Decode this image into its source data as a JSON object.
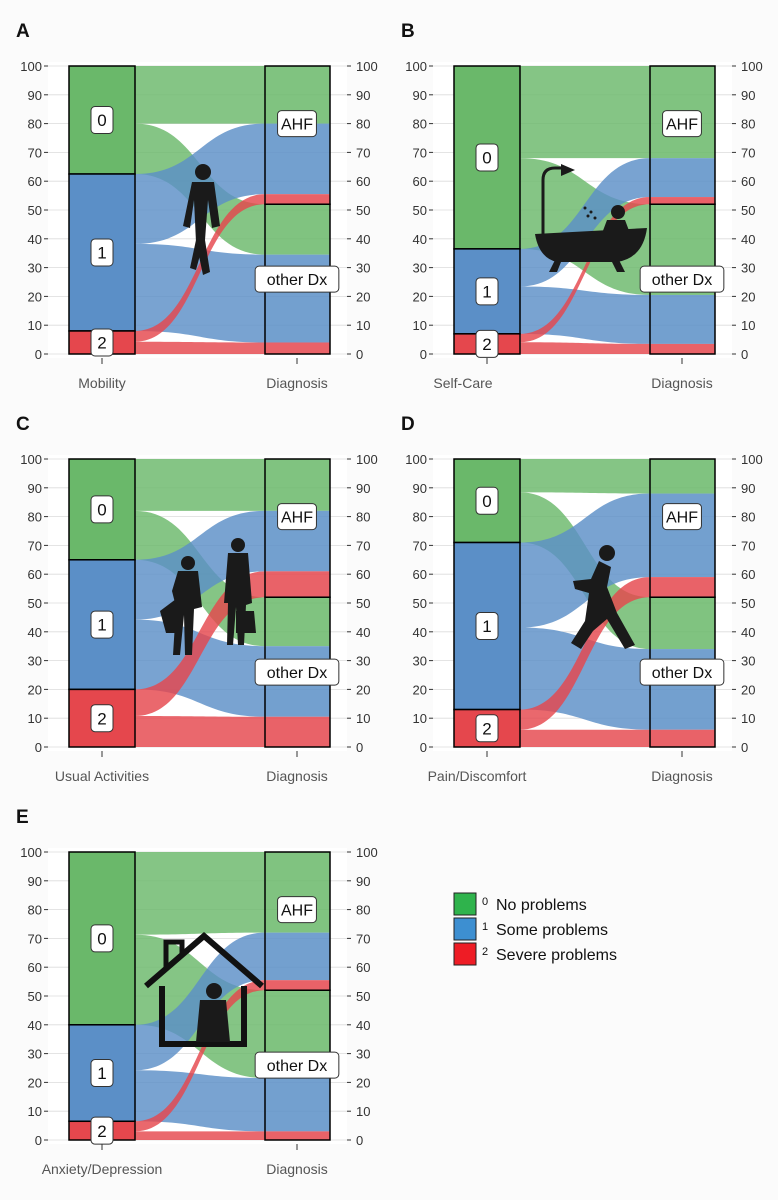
{
  "colors": {
    "level0": "#6ab86a",
    "level1": "#5b8fc7",
    "level2": "#e5474d",
    "grid": "#dcdcdc",
    "axis_text": "#555555"
  },
  "y_axis": {
    "min": 0,
    "max": 100,
    "ticks": [
      0,
      10,
      20,
      30,
      40,
      50,
      60,
      70,
      80,
      90,
      100
    ]
  },
  "legend": {
    "items": [
      {
        "level": "0",
        "label": "No problems",
        "color": "#2fb34c"
      },
      {
        "level": "1",
        "label": "Some problems",
        "color": "#3d8fd1"
      },
      {
        "level": "2",
        "label": "Severe problems",
        "color": "#ee1c25"
      }
    ]
  },
  "chart_data": [
    {
      "type": "alluvial",
      "panel": "A",
      "left_axis": "Mobility",
      "right_axis": "Diagnosis",
      "left_levels": [
        {
          "label": "0",
          "from": 62.5,
          "to": 100
        },
        {
          "label": "1",
          "from": 8,
          "to": 62.5
        },
        {
          "label": "2",
          "from": 0,
          "to": 8
        }
      ],
      "diagnosis_split": 52,
      "right_stack": [
        {
          "level": "0",
          "dx": "AHF",
          "from": 80,
          "to": 100
        },
        {
          "level": "1",
          "dx": "AHF",
          "from": 55.5,
          "to": 80
        },
        {
          "level": "2",
          "dx": "AHF",
          "from": 52,
          "to": 55.5
        },
        {
          "level": "0",
          "dx": "other Dx",
          "from": 34.5,
          "to": 52
        },
        {
          "level": "1",
          "dx": "other Dx",
          "from": 4,
          "to": 34.5
        },
        {
          "level": "2",
          "dx": "other Dx",
          "from": 0,
          "to": 4
        }
      ],
      "diagnosis_labels": [
        "AHF",
        "other Dx"
      ],
      "icon": "walking-person-icon"
    },
    {
      "type": "alluvial",
      "panel": "B",
      "left_axis": "Self-Care",
      "right_axis": "Diagnosis",
      "left_levels": [
        {
          "label": "0",
          "from": 36.5,
          "to": 100
        },
        {
          "label": "1",
          "from": 7,
          "to": 36.5
        },
        {
          "label": "2",
          "from": 0,
          "to": 7
        }
      ],
      "diagnosis_split": 52,
      "right_stack": [
        {
          "level": "0",
          "dx": "AHF",
          "from": 68,
          "to": 100
        },
        {
          "level": "1",
          "dx": "AHF",
          "from": 54.5,
          "to": 68
        },
        {
          "level": "2",
          "dx": "AHF",
          "from": 52,
          "to": 54.5
        },
        {
          "level": "0",
          "dx": "other Dx",
          "from": 20.5,
          "to": 52
        },
        {
          "level": "1",
          "dx": "other Dx",
          "from": 3.5,
          "to": 20.5
        },
        {
          "level": "2",
          "dx": "other Dx",
          "from": 0,
          "to": 3.5
        }
      ],
      "diagnosis_labels": [
        "AHF",
        "other Dx"
      ],
      "icon": "bathtub-icon"
    },
    {
      "type": "alluvial",
      "panel": "C",
      "left_axis": "Usual Activities",
      "right_axis": "Diagnosis",
      "left_levels": [
        {
          "label": "0",
          "from": 65,
          "to": 100
        },
        {
          "label": "1",
          "from": 20,
          "to": 65
        },
        {
          "label": "2",
          "from": 0,
          "to": 20
        }
      ],
      "diagnosis_split": 52,
      "right_stack": [
        {
          "level": "0",
          "dx": "AHF",
          "from": 82,
          "to": 100
        },
        {
          "level": "1",
          "dx": "AHF",
          "from": 61,
          "to": 82
        },
        {
          "level": "2",
          "dx": "AHF",
          "from": 52,
          "to": 61
        },
        {
          "level": "0",
          "dx": "other Dx",
          "from": 35,
          "to": 52
        },
        {
          "level": "1",
          "dx": "other Dx",
          "from": 10.5,
          "to": 35
        },
        {
          "level": "2",
          "dx": "other Dx",
          "from": 0,
          "to": 10.5
        }
      ],
      "diagnosis_labels": [
        "AHF",
        "other Dx"
      ],
      "icon": "people-carrying-bags-icon"
    },
    {
      "type": "alluvial",
      "panel": "D",
      "left_axis": "Pain/Discomfort",
      "right_axis": "Diagnosis",
      "left_levels": [
        {
          "label": "0",
          "from": 71,
          "to": 100
        },
        {
          "label": "1",
          "from": 13,
          "to": 71
        },
        {
          "label": "2",
          "from": 0,
          "to": 13
        }
      ],
      "diagnosis_split": 52,
      "right_stack": [
        {
          "level": "0",
          "dx": "AHF",
          "from": 88,
          "to": 100
        },
        {
          "level": "1",
          "dx": "AHF",
          "from": 59,
          "to": 88
        },
        {
          "level": "2",
          "dx": "AHF",
          "from": 52,
          "to": 59
        },
        {
          "level": "0",
          "dx": "other Dx",
          "from": 34,
          "to": 52
        },
        {
          "level": "1",
          "dx": "other Dx",
          "from": 6,
          "to": 34
        },
        {
          "level": "2",
          "dx": "other Dx",
          "from": 0,
          "to": 6
        }
      ],
      "diagnosis_labels": [
        "AHF",
        "other Dx"
      ],
      "icon": "person-in-pain-icon"
    },
    {
      "type": "alluvial",
      "panel": "E",
      "left_axis": "Anxiety/Depression",
      "right_axis": "Diagnosis",
      "left_levels": [
        {
          "label": "0",
          "from": 40,
          "to": 100
        },
        {
          "label": "1",
          "from": 6.5,
          "to": 40
        },
        {
          "label": "2",
          "from": 0,
          "to": 6.5
        }
      ],
      "diagnosis_split": 52,
      "right_stack": [
        {
          "level": "0",
          "dx": "AHF",
          "from": 72,
          "to": 100
        },
        {
          "level": "1",
          "dx": "AHF",
          "from": 55.5,
          "to": 72
        },
        {
          "level": "2",
          "dx": "AHF",
          "from": 52,
          "to": 55.5
        },
        {
          "level": "0",
          "dx": "other Dx",
          "from": 21.5,
          "to": 52
        },
        {
          "level": "1",
          "dx": "other Dx",
          "from": 3,
          "to": 21.5
        },
        {
          "level": "2",
          "dx": "other Dx",
          "from": 0,
          "to": 3
        }
      ],
      "diagnosis_labels": [
        "AHF",
        "other Dx"
      ],
      "icon": "person-in-house-icon"
    }
  ]
}
